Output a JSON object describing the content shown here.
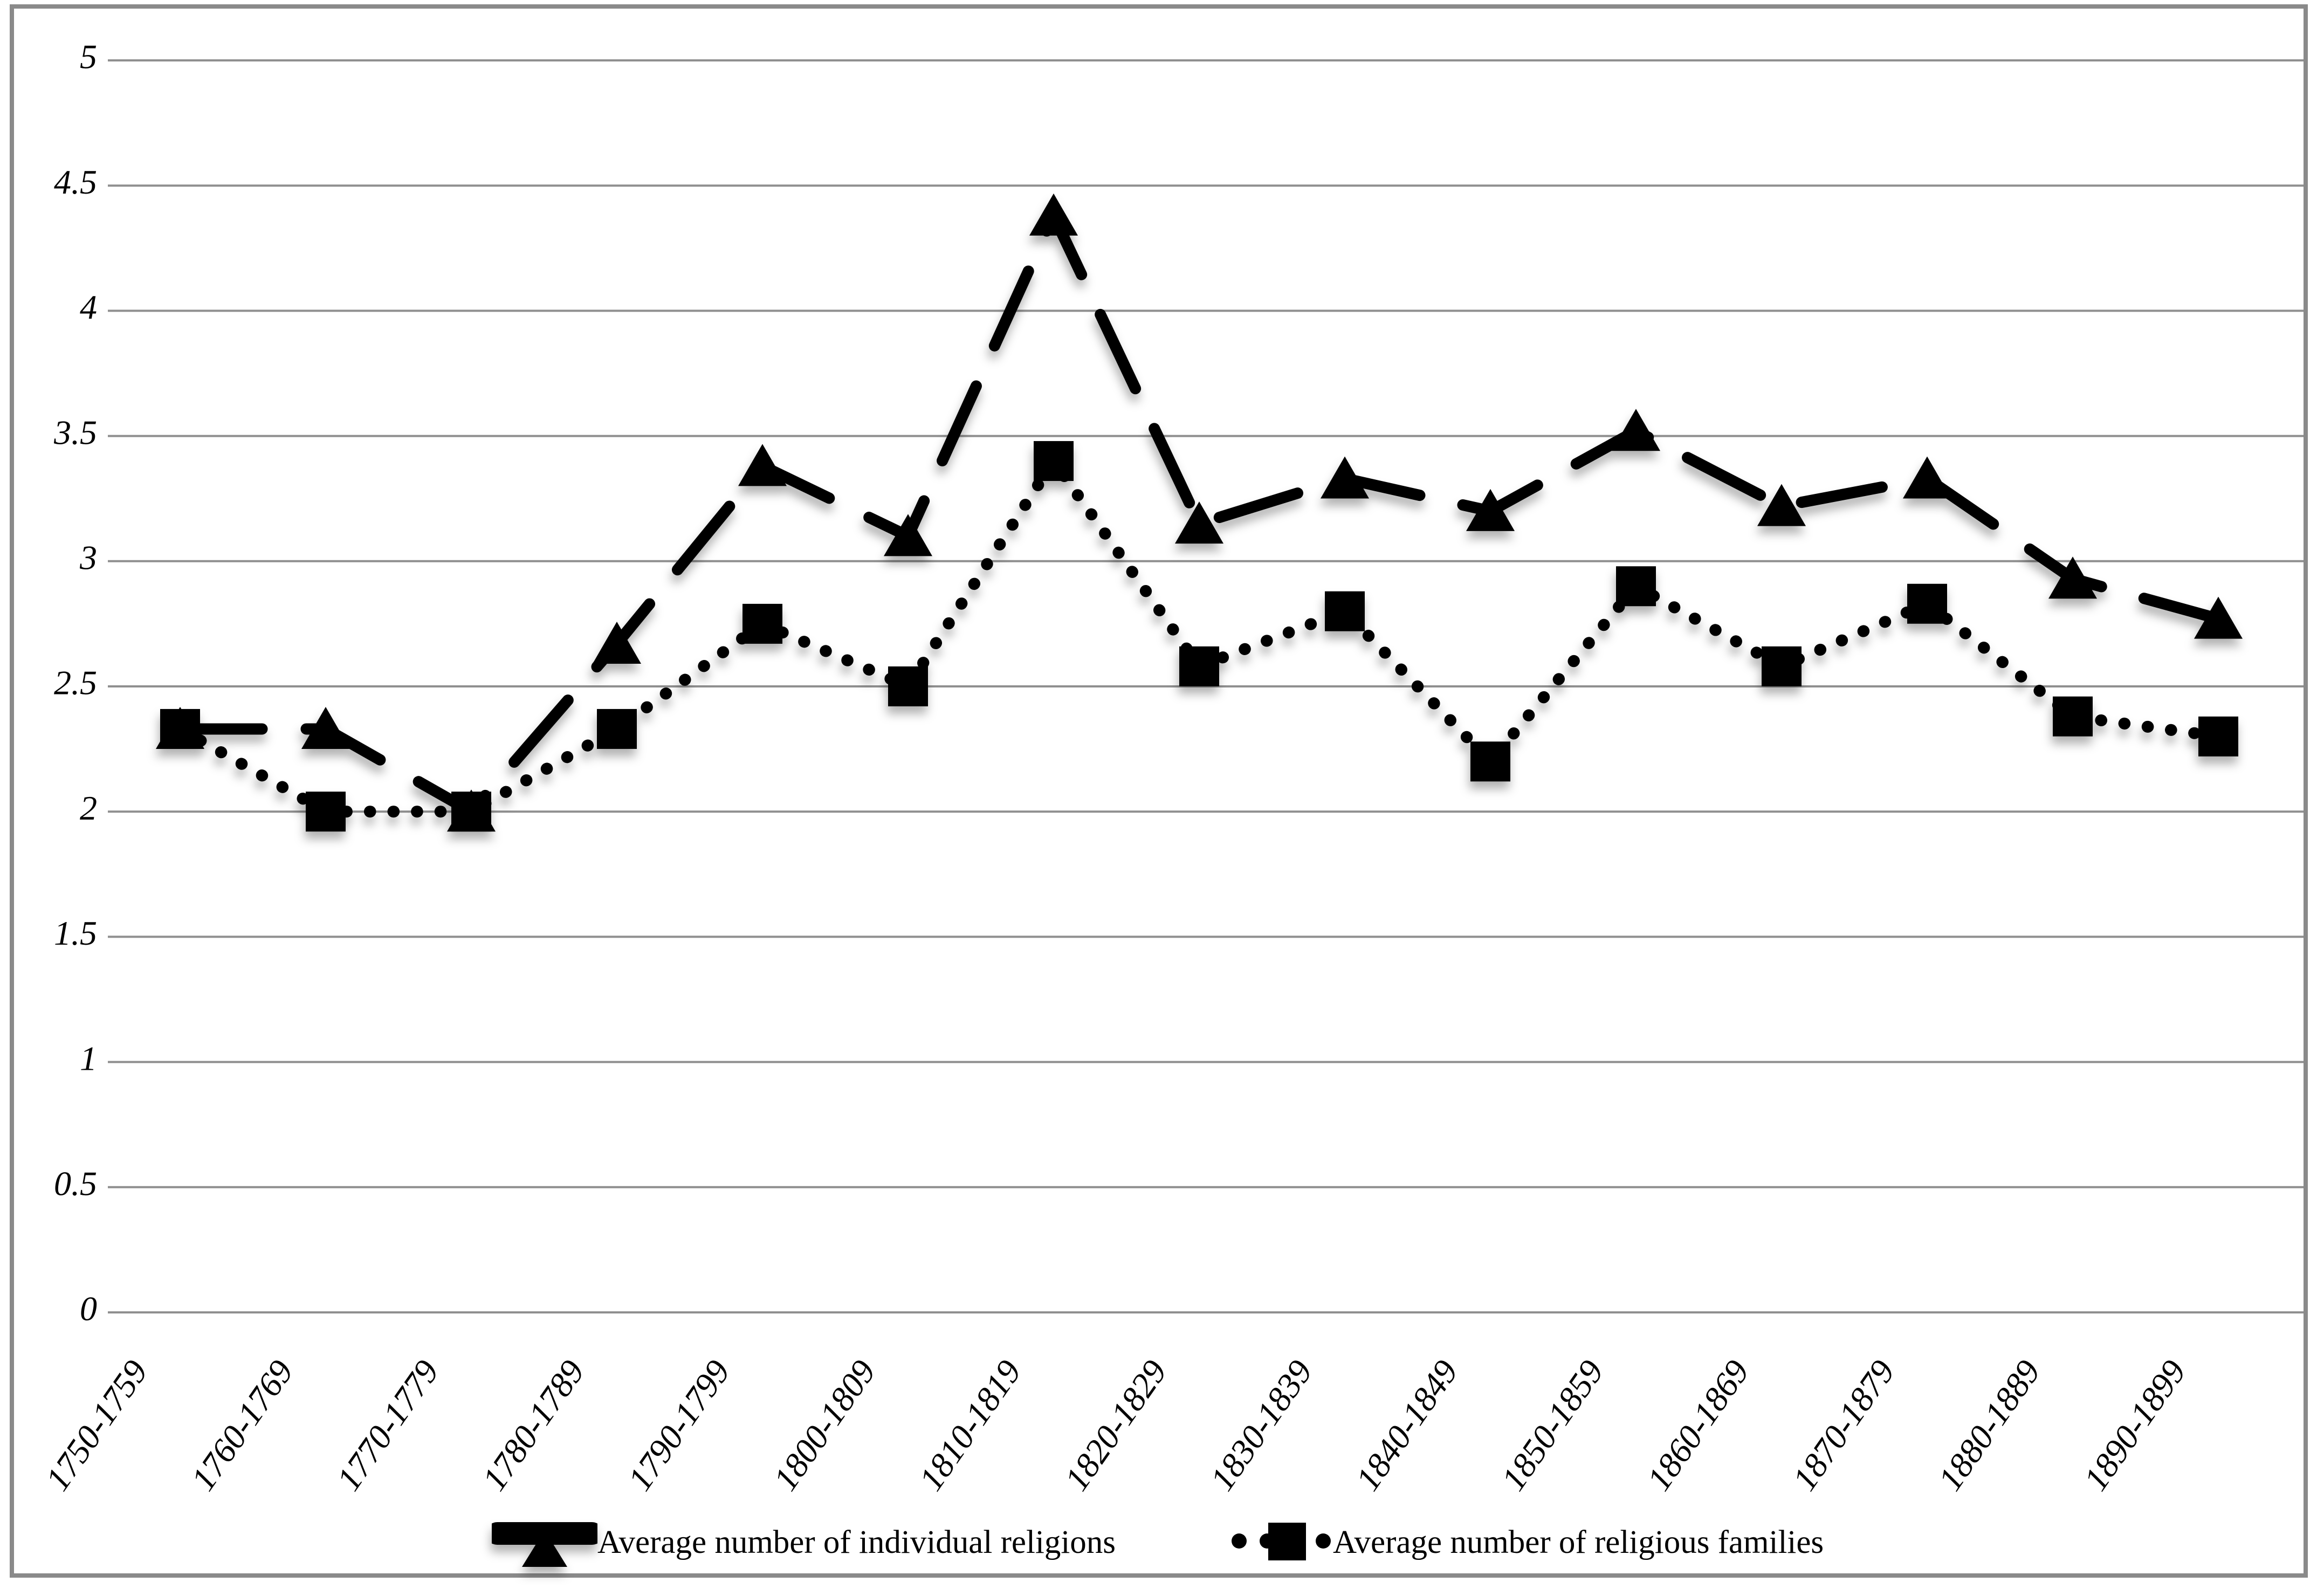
{
  "chart_data": {
    "type": "line",
    "categories": [
      "1750-1759",
      "1760-1769",
      "1770-1779",
      "1780-1789",
      "1790-1799",
      "1800-1809",
      "1810-1819",
      "1820-1829",
      "1830-1839",
      "1840-1849",
      "1850-1859",
      "1860-1869",
      "1870-1879",
      "1880-1889",
      "1890-1899"
    ],
    "series": [
      {
        "name": "Average number of individual religions",
        "marker": "triangle",
        "line": "dashed",
        "values": [
          2.33,
          2.33,
          2.0,
          2.67,
          3.38,
          3.1,
          4.38,
          3.15,
          3.33,
          3.2,
          3.52,
          3.22,
          3.33,
          2.93,
          2.77
        ]
      },
      {
        "name": "Average number of religious families",
        "marker": "square",
        "line": "dotted",
        "values": [
          2.33,
          2.0,
          2.0,
          2.33,
          2.75,
          2.5,
          3.4,
          2.58,
          2.8,
          2.2,
          2.9,
          2.58,
          2.83,
          2.38,
          2.3
        ]
      }
    ],
    "yticks": [
      "5",
      "4.5",
      "4",
      "3.5",
      "3",
      "2.5",
      "2",
      "1.5",
      "1",
      "0.5",
      "0"
    ],
    "ylim": [
      0,
      5
    ],
    "ytick_step": 0.5,
    "grid": true,
    "legend_position": "bottom",
    "colors": {
      "series": "#000000",
      "gridline": "#8f8f8f",
      "border": "#8a8a8a",
      "background": "#ffffff"
    }
  }
}
